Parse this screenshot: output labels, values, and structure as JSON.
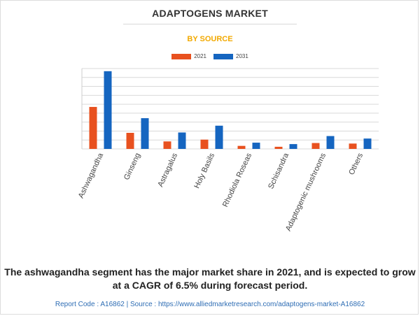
{
  "header": {
    "title": "ADAPTOGENS MARKET",
    "subtitle": "BY SOURCE"
  },
  "colors": {
    "series_2021": "#e8511f",
    "series_2031": "#1565c0",
    "subtitle": "#f2a900",
    "grid": "#d9d9d9"
  },
  "chart_data": {
    "type": "bar",
    "categories": [
      "Ashwagandha",
      "Ginseng",
      "Astragalus",
      "Holy Basils",
      "Rhodiola Roseas",
      "Schisandra",
      "Adaptogenic mushrooms",
      "Others"
    ],
    "series": [
      {
        "name": "2021",
        "values": [
          2.35,
          0.9,
          0.42,
          0.52,
          0.17,
          0.12,
          0.33,
          0.3
        ]
      },
      {
        "name": "2031",
        "values": [
          4.35,
          1.72,
          0.92,
          1.3,
          0.35,
          0.27,
          0.72,
          0.58
        ]
      }
    ],
    "ylim": [
      0,
      4.5
    ],
    "grid": true,
    "legend": "top-center",
    "y_tick_labels_shown": false
  },
  "footer": {
    "caption": "The ashwagandha segment has the major market share in 2021, and is expected to grow at a CAGR of 6.5% during forecast period.",
    "source": "Report Code : A16862  |  Source : https://www.alliedmarketresearch.com/adaptogens-market-A16862"
  }
}
